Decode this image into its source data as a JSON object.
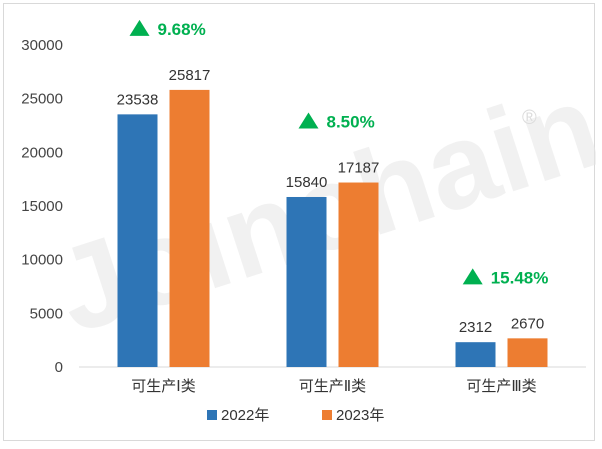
{
  "chart_data": {
    "type": "bar",
    "categories": [
      "可生产Ⅰ类",
      "可生产Ⅱ类",
      "可生产Ⅲ类"
    ],
    "series": [
      {
        "name": "2022年",
        "values": [
          23538,
          15840,
          2312
        ],
        "color": "#2e75b6"
      },
      {
        "name": "2023年",
        "values": [
          25817,
          17187,
          2670
        ],
        "color": "#ed7d31"
      }
    ],
    "growth_labels": [
      "9.68%",
      "8.50%",
      "15.48%"
    ],
    "growth_color": "#00b050",
    "growth_icon": "triangle-up-icon",
    "ylim": [
      0,
      30000
    ],
    "yticks": [
      0,
      5000,
      10000,
      15000,
      20000,
      25000,
      30000
    ],
    "grid": false,
    "legend_position": "bottom",
    "watermark": "Joinchain",
    "watermark_mark": "®"
  }
}
